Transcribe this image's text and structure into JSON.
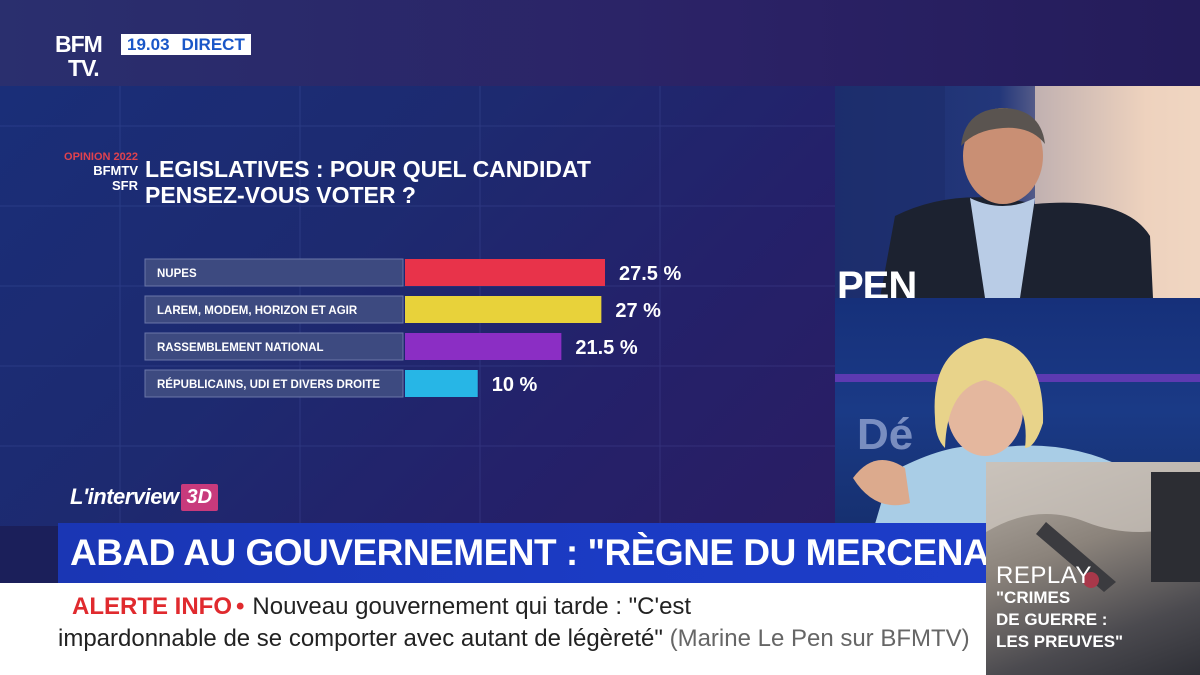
{
  "channel": {
    "logo_line1": "BFM",
    "logo_line2": "TV.",
    "time": "19.03",
    "live_label": "DIRECT"
  },
  "poll_badge": {
    "line1": "OPINION 2022",
    "line2": "BFMTV",
    "line3": "SFR"
  },
  "chart_data": {
    "type": "bar",
    "orientation": "horizontal",
    "title": "LEGISLATIVES : POUR QUEL CANDIDAT PENSEZ-VOUS VOTER ?",
    "title_lines": [
      "LEGISLATIVES : POUR QUEL CANDIDAT",
      "PENSEZ-VOUS VOTER ?"
    ],
    "categories": [
      "NUPES",
      "LAREM, MODEM, HORIZON ET AGIR",
      "RASSEMBLEMENT NATIONAL",
      "RÉPUBLICAINS, UDI ET DIVERS DROITE"
    ],
    "values": [
      27.5,
      27,
      21.5,
      10
    ],
    "value_labels": [
      "27.5 %",
      "27 %",
      "21.5 %",
      "10 %"
    ],
    "colors": [
      "#e8334a",
      "#e8d23a",
      "#8b2ec4",
      "#27b6e6"
    ],
    "unit": "%",
    "xlim": [
      0,
      27.5
    ]
  },
  "show": {
    "name": "L'interview",
    "suffix": "3D"
  },
  "studio": {
    "backdrop_text": "PEN",
    "backdrop_text2": "Dé"
  },
  "headline": "ABAD AU GOUVERNEMENT : \"RÈGNE DU MERCENARIAT\"",
  "ticker": {
    "alert_label": "ALERTE INFO",
    "alert_dot": "•",
    "text_line1": "Nouveau gouvernement qui tarde : \"C'est",
    "text_line2": "impardonnable de se comporter avec autant de légèreté\"",
    "source": "(Marine Le Pen sur BFMTV)"
  },
  "replay": {
    "label": "REPLAY",
    "title_line1": "\"CRIMES",
    "title_line2": "DE GUERRE :",
    "title_line3": "LES PREUVES\""
  }
}
